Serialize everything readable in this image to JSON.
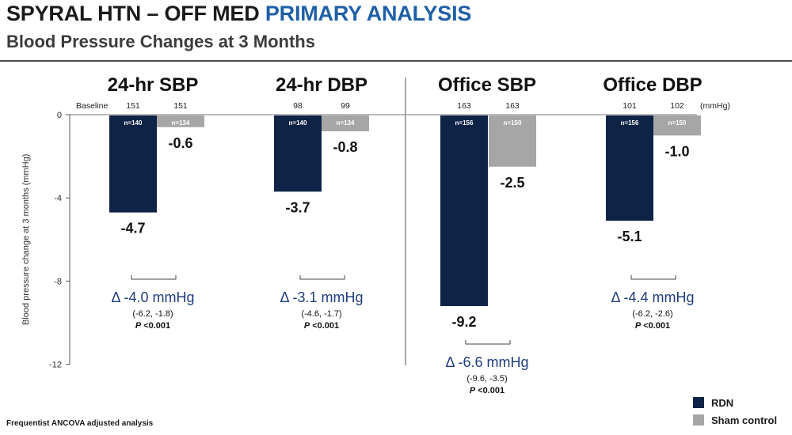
{
  "header": {
    "title_main": "SPYRAL HTN – OFF MED",
    "title_accent": "PRIMARY ANALYSIS",
    "subtitle": "Blood Pressure Changes at 3 Months"
  },
  "footnote": "Frequentist ANCOVA adjusted analysis",
  "legend": {
    "items": [
      {
        "label": "RDN",
        "color": "#0f2347"
      },
      {
        "label": "Sham control",
        "color": "#a6a6a6"
      }
    ]
  },
  "chart_data": {
    "type": "bar",
    "ylabel": "Blood pressure change at 3 months (mmHg)",
    "ylim": [
      -12,
      0
    ],
    "yticks": [
      "0",
      "-4",
      "-8",
      "-12"
    ],
    "baseline_label": "Baseline",
    "unit_label": "(mmHg)",
    "colors": {
      "rdn": "#0f2347",
      "sham": "#a6a6a6"
    },
    "groups": [
      {
        "name": "24-hr SBP",
        "rdn": {
          "baseline": "151",
          "n": "n=140",
          "value": -4.7,
          "label": "-4.7"
        },
        "sham": {
          "baseline": "151",
          "n": "n=134",
          "value": -0.6,
          "label": "-0.6"
        },
        "delta": {
          "value": -4.0,
          "text": "Δ -4.0 mmHg",
          "ci": "(-6.2, -1.8)",
          "p_letter": "P",
          "p_rest": " <0.001"
        }
      },
      {
        "name": "24-hr DBP",
        "rdn": {
          "baseline": "98",
          "n": "n=140",
          "value": -3.7,
          "label": "-3.7"
        },
        "sham": {
          "baseline": "99",
          "n": "n=134",
          "value": -0.8,
          "label": "-0.8"
        },
        "delta": {
          "value": -3.1,
          "text": "Δ -3.1 mmHg",
          "ci": "(-4.6, -1.7)",
          "p_letter": "P",
          "p_rest": " <0.001"
        }
      },
      {
        "name": "Office SBP",
        "rdn": {
          "baseline": "163",
          "n": "n=156",
          "value": -9.2,
          "label": "-9.2"
        },
        "sham": {
          "baseline": "163",
          "n": "n=150",
          "value": -2.5,
          "label": "-2.5"
        },
        "delta": {
          "value": -6.6,
          "text": "Δ -6.6 mmHg",
          "ci": "(-9.6, -3.5)",
          "p_letter": "P",
          "p_rest": " <0.001"
        }
      },
      {
        "name": "Office DBP",
        "rdn": {
          "baseline": "101",
          "n": "n=156",
          "value": -5.1,
          "label": "-5.1"
        },
        "sham": {
          "baseline": "102",
          "n": "n=150",
          "value": -1.0,
          "label": "-1.0"
        },
        "delta": {
          "value": -4.4,
          "text": "Δ -4.4 mmHg",
          "ci": "(-6.2, -2.6)",
          "p_letter": "P",
          "p_rest": " <0.001"
        }
      }
    ]
  }
}
